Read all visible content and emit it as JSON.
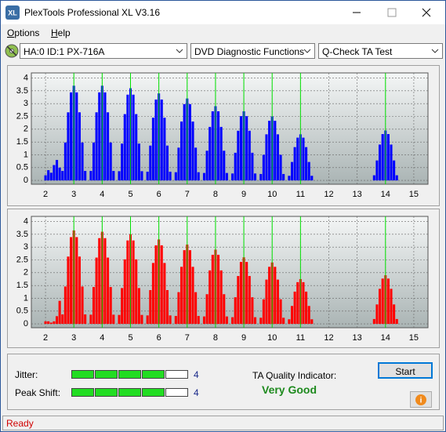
{
  "window": {
    "title": "PlexTools Professional XL V3.16"
  },
  "menu": [
    "Options",
    "Help"
  ],
  "toolbar": {
    "drive": "HA:0 ID:1  PX-716A",
    "function": "DVD Diagnostic Functions",
    "test": "Q-Check TA Test"
  },
  "chart_data": [
    {
      "type": "bar",
      "color": "#0000ff",
      "x": [
        2,
        2.1,
        2.2,
        2.3,
        2.4,
        2.5,
        2.6,
        2.7,
        2.8,
        2.9,
        3,
        3.1,
        3.2,
        3.3,
        3.4,
        3.5,
        3.6,
        3.7,
        3.8,
        3.9,
        4,
        4.1,
        4.2,
        4.3,
        4.4,
        4.5,
        4.6,
        4.7,
        4.8,
        4.9,
        5,
        5.1,
        5.2,
        5.3,
        5.4,
        5.5,
        5.6,
        5.7,
        5.8,
        5.9,
        6,
        6.1,
        6.2,
        6.3,
        6.4,
        6.5,
        6.6,
        6.7,
        6.8,
        6.9,
        7,
        7.1,
        7.2,
        7.3,
        7.4,
        7.5,
        7.6,
        7.7,
        7.8,
        7.9,
        8,
        8.1,
        8.2,
        8.3,
        8.4,
        8.5,
        8.6,
        8.7,
        8.8,
        8.9,
        9,
        9.1,
        9.2,
        9.3,
        9.4,
        9.5,
        9.6,
        9.7,
        9.8,
        9.9,
        10,
        10.1,
        10.2,
        10.3,
        10.4,
        10.5,
        10.6,
        10.7,
        10.8,
        10.9,
        11,
        11.1,
        11.2,
        11.3,
        11.4,
        11.5,
        11.6,
        11.7,
        11.8,
        11.9,
        12,
        12.1,
        12.2,
        12.3,
        12.4,
        12.5,
        12.6,
        12.7,
        12.8,
        12.9,
        13,
        13.1,
        13.2,
        13.3,
        13.4,
        13.5,
        13.6,
        13.7,
        13.8,
        13.9,
        14,
        14.1,
        14.2,
        14.3,
        14.4,
        14.5
      ],
      "values": [
        0.2,
        0.4,
        0.3,
        0.6,
        0.8,
        0.5,
        0.37,
        1.48,
        2.66,
        3.44,
        3.7,
        3.44,
        2.66,
        1.48,
        0.37,
        0,
        0.37,
        1.48,
        2.66,
        3.44,
        3.7,
        3.44,
        2.66,
        1.48,
        0.37,
        0,
        0.36,
        1.44,
        2.59,
        3.35,
        3.6,
        3.35,
        2.59,
        1.44,
        0.36,
        0,
        0.34,
        1.36,
        2.45,
        3.16,
        3.4,
        3.16,
        2.45,
        1.36,
        0.34,
        0,
        0.32,
        1.28,
        2.3,
        2.98,
        3.2,
        2.98,
        2.3,
        1.28,
        0.32,
        0,
        0.29,
        1.16,
        2.09,
        2.7,
        2.9,
        2.7,
        2.09,
        1.16,
        0.29,
        0,
        0.27,
        1.08,
        1.94,
        2.51,
        2.7,
        2.51,
        1.94,
        1.08,
        0.27,
        0,
        0.25,
        1,
        1.8,
        2.33,
        2.5,
        2.33,
        1.8,
        1,
        0.25,
        0,
        0.18,
        0.72,
        1.3,
        1.67,
        1.8,
        1.67,
        1.3,
        0.72,
        0.18,
        0,
        0,
        0,
        0,
        0,
        0,
        0,
        0,
        0,
        0,
        0,
        0,
        0,
        0,
        0,
        0,
        0,
        0,
        0,
        0,
        0,
        0.2,
        0.78,
        1.4,
        1.81,
        1.95,
        1.81,
        1.4,
        0.78,
        0.2,
        0
      ],
      "xlim": [
        1.5,
        15.5
      ],
      "ylim": [
        -0.15,
        4.2
      ],
      "xticks": [
        2,
        3,
        4,
        5,
        6,
        7,
        8,
        9,
        10,
        11,
        12,
        13,
        14,
        15
      ],
      "yticks": [
        0,
        0.5,
        1,
        1.5,
        2,
        2.5,
        3,
        3.5,
        4
      ],
      "grid": true,
      "markers": [
        3,
        4,
        5,
        6,
        7,
        8,
        9,
        10,
        11,
        14
      ],
      "marker_color": "#00e000"
    },
    {
      "type": "bar",
      "color": "#ff0000",
      "x": [
        2,
        2.1,
        2.2,
        2.3,
        2.4,
        2.5,
        2.6,
        2.7,
        2.8,
        2.9,
        3,
        3.1,
        3.2,
        3.3,
        3.4,
        3.5,
        3.6,
        3.7,
        3.8,
        3.9,
        4,
        4.1,
        4.2,
        4.3,
        4.4,
        4.5,
        4.6,
        4.7,
        4.8,
        4.9,
        5,
        5.1,
        5.2,
        5.3,
        5.4,
        5.5,
        5.6,
        5.7,
        5.8,
        5.9,
        6,
        6.1,
        6.2,
        6.3,
        6.4,
        6.5,
        6.6,
        6.7,
        6.8,
        6.9,
        7,
        7.1,
        7.2,
        7.3,
        7.4,
        7.5,
        7.6,
        7.7,
        7.8,
        7.9,
        8,
        8.1,
        8.2,
        8.3,
        8.4,
        8.5,
        8.6,
        8.7,
        8.8,
        8.9,
        9,
        9.1,
        9.2,
        9.3,
        9.4,
        9.5,
        9.6,
        9.7,
        9.8,
        9.9,
        10,
        10.1,
        10.2,
        10.3,
        10.4,
        10.5,
        10.6,
        10.7,
        10.8,
        10.9,
        11,
        11.1,
        11.2,
        11.3,
        11.4,
        11.5,
        11.6,
        11.7,
        11.8,
        11.9,
        12,
        12.1,
        12.2,
        12.3,
        12.4,
        12.5,
        12.6,
        12.7,
        12.8,
        12.9,
        13,
        13.1,
        13.2,
        13.3,
        13.4,
        13.5,
        13.6,
        13.7,
        13.8,
        13.9,
        14,
        14.1,
        14.2,
        14.3,
        14.4,
        14.5
      ],
      "values": [
        0.1,
        0.1,
        0.05,
        0.1,
        0.3,
        0.9,
        0.37,
        1.46,
        2.63,
        3.39,
        3.65,
        3.39,
        2.63,
        1.46,
        0.37,
        0,
        0.36,
        1.44,
        2.59,
        3.35,
        3.6,
        3.35,
        2.59,
        1.44,
        0.36,
        0,
        0.35,
        1.4,
        2.52,
        3.26,
        3.5,
        3.26,
        2.52,
        1.4,
        0.35,
        0,
        0.33,
        1.32,
        2.38,
        3.07,
        3.3,
        3.07,
        2.38,
        1.32,
        0.33,
        0,
        0.31,
        1.24,
        2.23,
        2.88,
        3.1,
        2.88,
        2.23,
        1.24,
        0.31,
        0,
        0.29,
        1.16,
        2.09,
        2.7,
        2.9,
        2.7,
        2.09,
        1.16,
        0.29,
        0,
        0.26,
        1.04,
        1.87,
        2.42,
        2.6,
        2.42,
        1.87,
        1.04,
        0.26,
        0,
        0.24,
        0.96,
        1.73,
        2.23,
        2.4,
        2.23,
        1.73,
        0.96,
        0.24,
        0,
        0.18,
        0.7,
        1.26,
        1.63,
        1.75,
        1.63,
        1.26,
        0.7,
        0.18,
        0,
        0,
        0,
        0,
        0,
        0,
        0,
        0,
        0,
        0,
        0,
        0,
        0,
        0,
        0,
        0,
        0,
        0,
        0,
        0,
        0,
        0.19,
        0.76,
        1.37,
        1.77,
        1.9,
        1.77,
        1.37,
        0.76,
        0.19,
        0
      ],
      "xlim": [
        1.5,
        15.5
      ],
      "ylim": [
        -0.15,
        4.2
      ],
      "xticks": [
        2,
        3,
        4,
        5,
        6,
        7,
        8,
        9,
        10,
        11,
        12,
        13,
        14,
        15
      ],
      "yticks": [
        0,
        0.5,
        1,
        1.5,
        2,
        2.5,
        3,
        3.5,
        4
      ],
      "grid": true,
      "markers": [
        3,
        4,
        5,
        6,
        7,
        8,
        9,
        10,
        11,
        14
      ],
      "marker_color": "#00e000"
    }
  ],
  "results": {
    "jitter": {
      "label": "Jitter:",
      "value": 4
    },
    "peak_shift": {
      "label": "Peak Shift:",
      "value": 4
    },
    "ta_quality_label": "TA Quality Indicator:",
    "ta_quality": "Very Good"
  },
  "buttons": {
    "start": "Start"
  },
  "status": "Ready"
}
